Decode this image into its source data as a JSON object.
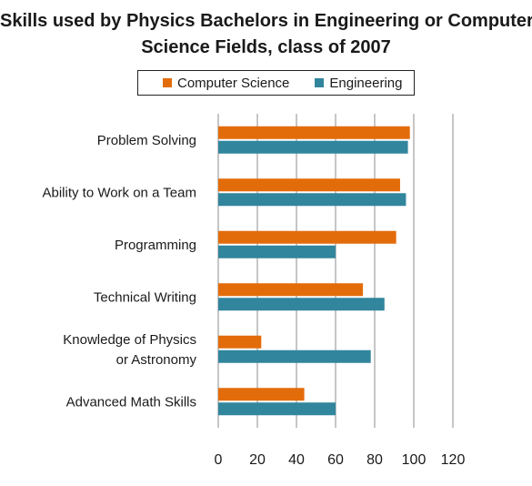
{
  "chart_data": {
    "type": "bar",
    "orientation": "horizontal",
    "title_lines": [
      "Skills used by Physics Bachelors in Engineering or Computer",
      "Science Fields, class of 2007"
    ],
    "categories": [
      {
        "lines": [
          "Problem Solving"
        ]
      },
      {
        "lines": [
          "Ability to Work on a Team"
        ]
      },
      {
        "lines": [
          "Programming"
        ]
      },
      {
        "lines": [
          "Technical Writing"
        ]
      },
      {
        "lines": [
          "Knowledge of Physics",
          "or Astronomy"
        ]
      },
      {
        "lines": [
          "Advanced Math Skills"
        ]
      }
    ],
    "series": [
      {
        "name": "Computer Science",
        "color": "#e36c0a",
        "values": [
          98,
          93,
          91,
          74,
          22,
          44
        ]
      },
      {
        "name": "Engineering",
        "color": "#31859c",
        "values": [
          97,
          96,
          60,
          85,
          78,
          60
        ]
      }
    ],
    "xlim": [
      0,
      120
    ],
    "xticks": [
      "0",
      "20",
      "40",
      "60",
      "80",
      "100",
      "120"
    ],
    "grid": true,
    "legend_position": "top"
  }
}
